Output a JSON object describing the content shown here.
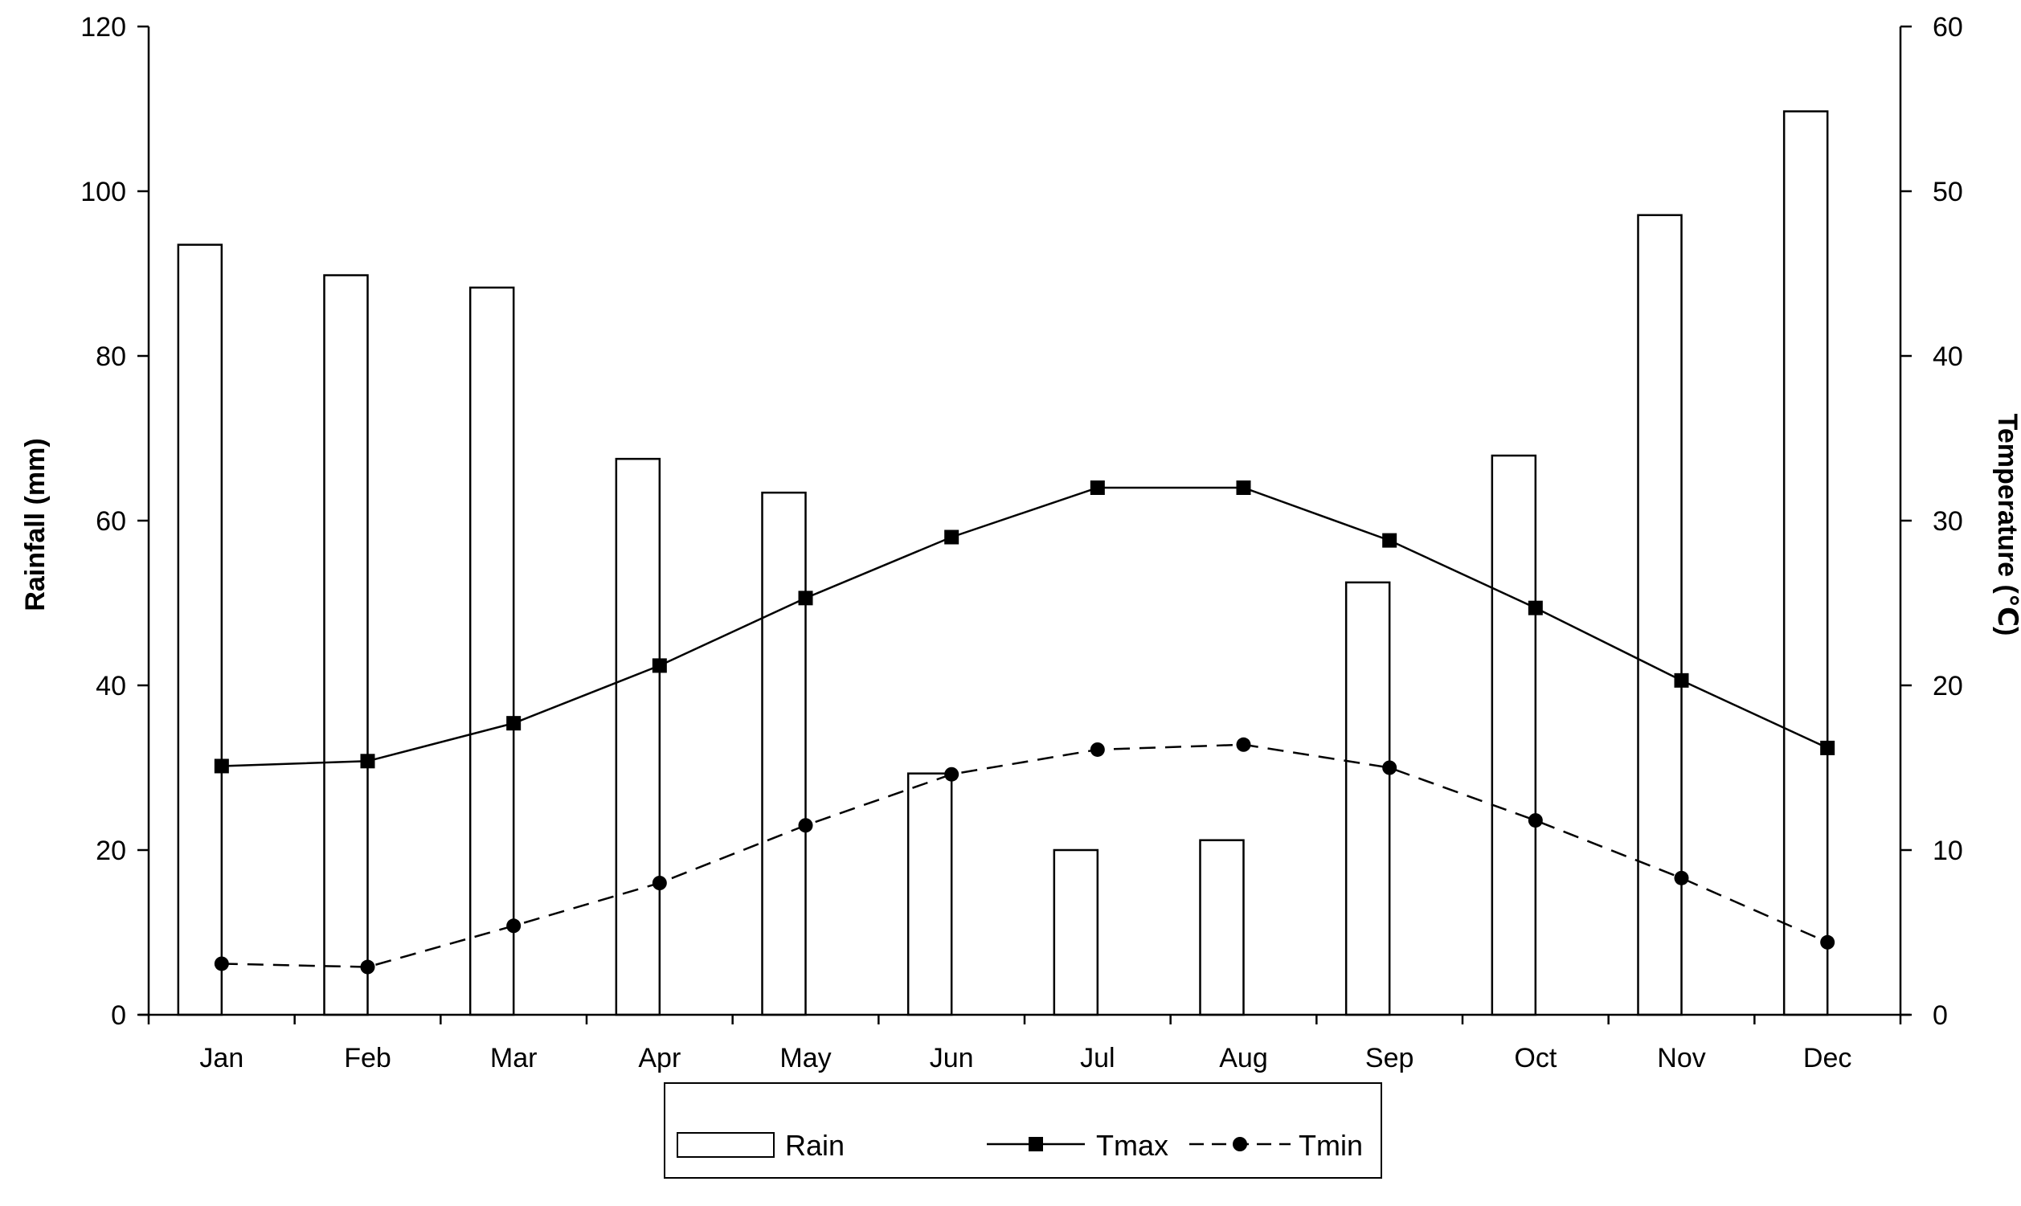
{
  "chart_data": {
    "type": "bar",
    "categories": [
      "Jan",
      "Feb",
      "Mar",
      "Apr",
      "May",
      "Jun",
      "Jul",
      "Aug",
      "Sep",
      "Oct",
      "Nov",
      "Dec"
    ],
    "series": [
      {
        "name": "Rain",
        "type": "bar",
        "axis": "left",
        "values": [
          93.5,
          89.8,
          88.3,
          67.5,
          63.4,
          29.3,
          20.0,
          21.2,
          52.5,
          67.9,
          97.1,
          109.7
        ]
      },
      {
        "name": "Tmax",
        "type": "line",
        "axis": "right",
        "line_style": "solid",
        "marker": "square",
        "values": [
          15.1,
          15.4,
          17.7,
          21.2,
          25.3,
          29.0,
          32.0,
          32.0,
          28.8,
          24.7,
          20.3,
          16.2
        ]
      },
      {
        "name": "Tmin",
        "type": "line",
        "axis": "right",
        "line_style": "dashed",
        "marker": "circle",
        "values": [
          3.1,
          2.9,
          5.4,
          8.0,
          11.5,
          14.6,
          16.1,
          16.4,
          15.0,
          11.8,
          8.3,
          4.4
        ]
      }
    ],
    "ylabel": "Rainfall (mm)",
    "y2label": "Temperature (℃)",
    "ylim": [
      0,
      120
    ],
    "y2lim": [
      0,
      60
    ],
    "yticks": [
      "0",
      "20",
      "40",
      "60",
      "80",
      "100",
      "120"
    ],
    "y2ticks": [
      "0",
      "10",
      "20",
      "30",
      "40",
      "50",
      "60"
    ],
    "grid": false,
    "legend_position": "bottom-center"
  }
}
